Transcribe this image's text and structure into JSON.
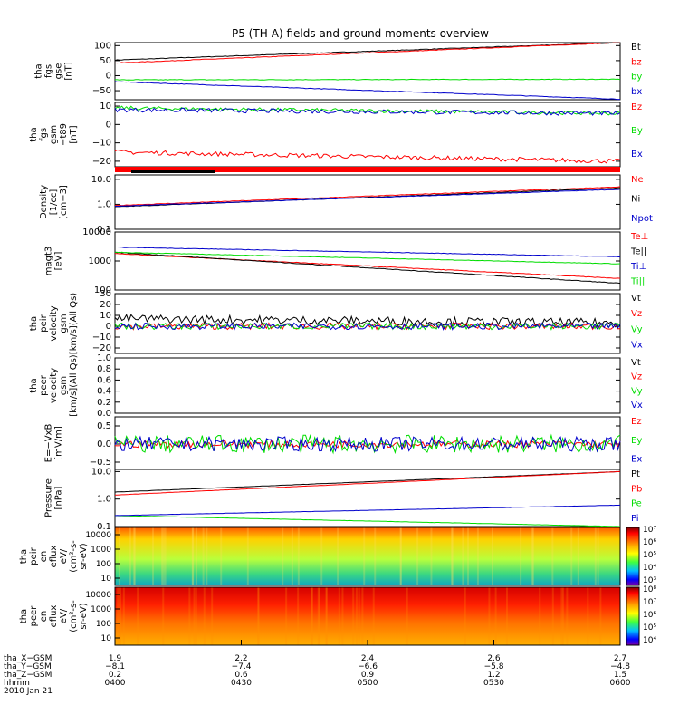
{
  "title": "P5 (TH-A) fields and ground moments overview",
  "colors": {
    "black": "#000000",
    "red": "#ff0000",
    "green": "#00dd00",
    "blue": "#0000cc"
  },
  "chart_data": [
    {
      "type": "line",
      "id": "fgs_gse",
      "ylabel": [
        "tha",
        "fgs",
        "gse",
        "[nT]"
      ],
      "ylim": [
        -80,
        110
      ],
      "yticks": [
        {
          "v": 100,
          "t": "100"
        },
        {
          "v": 50,
          "t": "50"
        },
        {
          "v": 0,
          "t": "0"
        },
        {
          "v": -50,
          "t": "−50"
        }
      ],
      "series": [
        {
          "name": "Bt",
          "color": "black",
          "start": 52,
          "end": 110,
          "noise": 1
        },
        {
          "name": "bz",
          "color": "red",
          "start": 42,
          "end": 110,
          "noise": 1
        },
        {
          "name": "by",
          "color": "green",
          "start": -14,
          "end": -12,
          "noise": 1
        },
        {
          "name": "bx",
          "color": "blue",
          "start": -20,
          "end": -78,
          "noise": 1
        }
      ]
    },
    {
      "type": "line",
      "id": "fgs_gsm",
      "ylabel": [
        "tha",
        "fgs",
        "gsm",
        "−t89",
        "[nT]"
      ],
      "ylim": [
        -23,
        12
      ],
      "yticks": [
        {
          "v": 10,
          "t": "10"
        },
        {
          "v": 0,
          "t": "0"
        },
        {
          "v": -10,
          "t": "−10"
        },
        {
          "v": -20,
          "t": "−20"
        }
      ],
      "series": [
        {
          "name": "Bz",
          "color": "red",
          "start": -15,
          "end": -20,
          "noise": 1.2
        },
        {
          "name": "By",
          "color": "green",
          "start": 9,
          "end": 6,
          "noise": 1
        },
        {
          "name": "Bx",
          "color": "blue",
          "start": 8,
          "end": 6,
          "noise": 1.2
        }
      ]
    },
    {
      "type": "line",
      "id": "density",
      "log": true,
      "ylabel": [
        "Density",
        "[1/cc]",
        "[cm−3]"
      ],
      "ylim": [
        0.1,
        15
      ],
      "yticks": [
        {
          "v": 10,
          "t": "10.0"
        },
        {
          "v": 1,
          "t": "1.0"
        },
        {
          "v": 0.1,
          "t": "0.1"
        }
      ],
      "series": [
        {
          "name": "Ne",
          "color": "red",
          "start": 0.9,
          "end": 5,
          "noise": 0.05
        },
        {
          "name": "Ni",
          "color": "black",
          "start": 0.8,
          "end": 4.5,
          "noise": 0.05
        },
        {
          "name": "Npot",
          "color": "blue",
          "start": 0.85,
          "end": 4,
          "noise": 0.05
        }
      ]
    },
    {
      "type": "line",
      "id": "temperature",
      "log": true,
      "ylabel": [
        "magt3",
        "[eV]"
      ],
      "ylim": [
        100,
        10000
      ],
      "yticks": [
        {
          "v": 10000,
          "t": "10000"
        },
        {
          "v": 1000,
          "t": "1000"
        },
        {
          "v": 100,
          "t": "100"
        }
      ],
      "series": [
        {
          "name": "Te⊥",
          "color": "red",
          "start": 1800,
          "end": 250,
          "noise": 0.05
        },
        {
          "name": "Te||",
          "color": "black",
          "start": 2000,
          "end": 170,
          "noise": 0.05
        },
        {
          "name": "Ti⊥",
          "color": "blue",
          "start": 3000,
          "end": 1400,
          "noise": 0.04
        },
        {
          "name": "Ti||",
          "color": "green",
          "start": 2000,
          "end": 800,
          "noise": 0.04
        }
      ]
    },
    {
      "type": "line",
      "id": "peir_velocity",
      "ylabel": [
        "tha",
        "peir",
        "velocity",
        "gsm",
        "[km/s](All Qs)"
      ],
      "ylim": [
        -25,
        30
      ],
      "yticks": [
        {
          "v": 30,
          "t": "30"
        },
        {
          "v": 20,
          "t": "20"
        },
        {
          "v": 10,
          "t": "10"
        },
        {
          "v": 0,
          "t": "0"
        },
        {
          "v": -10,
          "t": "−10"
        },
        {
          "v": -20,
          "t": "−20"
        }
      ],
      "series": [
        {
          "name": "Vt",
          "color": "black",
          "start": 7,
          "end": 3,
          "noise": 4
        },
        {
          "name": "Vz",
          "color": "red",
          "start": 0,
          "end": 0,
          "noise": 3
        },
        {
          "name": "Vy",
          "color": "green",
          "start": 0,
          "end": 0,
          "noise": 3
        },
        {
          "name": "Vx",
          "color": "blue",
          "start": 0,
          "end": 0,
          "noise": 3
        }
      ]
    },
    {
      "type": "line",
      "id": "peer_velocity",
      "ylabel": [
        "tha",
        "peer",
        "velocity",
        "gsm",
        "[km/s](All Qs)"
      ],
      "ylim": [
        0,
        1
      ],
      "yticks": [
        {
          "v": 1,
          "t": "1.0"
        },
        {
          "v": 0.8,
          "t": "0.8"
        },
        {
          "v": 0.6,
          "t": "0.6"
        },
        {
          "v": 0.4,
          "t": "0.4"
        },
        {
          "v": 0.2,
          "t": "0.2"
        },
        {
          "v": 0,
          "t": "0.0"
        }
      ],
      "series": [
        {
          "name": "Vt",
          "color": "black"
        },
        {
          "name": "Vz",
          "color": "red"
        },
        {
          "name": "Vy",
          "color": "green"
        },
        {
          "name": "Vx",
          "color": "blue"
        }
      ]
    },
    {
      "type": "line",
      "id": "efield",
      "ylabel": [
        "E=−VxB",
        "[mV/m]"
      ],
      "ylim": [
        -0.7,
        0.75
      ],
      "yticks": [
        {
          "v": 0.5,
          "t": "0.5"
        },
        {
          "v": 0,
          "t": "0.0"
        },
        {
          "v": -0.5,
          "t": "−0.5"
        }
      ],
      "series": [
        {
          "name": "Ez",
          "color": "red",
          "start": 0,
          "end": 0,
          "noise": 0.1
        },
        {
          "name": "Ey",
          "color": "green",
          "start": 0,
          "end": 0,
          "noise": 0.25
        },
        {
          "name": "Ex",
          "color": "blue",
          "start": 0,
          "end": 0,
          "noise": 0.2
        }
      ]
    },
    {
      "type": "line",
      "id": "pressure",
      "log": true,
      "ylabel": [
        "Pressure",
        "[nPa]"
      ],
      "ylim": [
        0.1,
        12
      ],
      "yticks": [
        {
          "v": 10,
          "t": "10.0"
        },
        {
          "v": 1,
          "t": "1.0"
        },
        {
          "v": 0.1,
          "t": "0.1"
        }
      ],
      "series": [
        {
          "name": "Pt",
          "color": "black",
          "start": 1.8,
          "end": 10,
          "noise": 0.02
        },
        {
          "name": "Pb",
          "color": "red",
          "start": 1.4,
          "end": 10,
          "noise": 0.02
        },
        {
          "name": "Pe",
          "color": "green",
          "start": 0.25,
          "end": 0.1,
          "noise": 0.02
        },
        {
          "name": "Pi",
          "color": "blue",
          "start": 0.25,
          "end": 0.6,
          "noise": 0.02
        }
      ]
    },
    {
      "type": "heatmap",
      "id": "peir_spectrogram",
      "ylabel": [
        "tha",
        "peir",
        "en",
        "eflux",
        "eV/",
        "(cm²-s-",
        "sr-eV)"
      ],
      "yticks": [
        "10000",
        "1000",
        "100",
        "10"
      ],
      "colorbar": [
        "10⁷",
        "10⁶",
        "10⁵",
        "10⁴",
        "10³"
      ]
    },
    {
      "type": "heatmap",
      "id": "peer_spectrogram",
      "ylabel": [
        "tha",
        "peer",
        "en",
        "eflux",
        "eV/",
        "(cm²-s-",
        "sr-eV)"
      ],
      "yticks": [
        "10000",
        "1000",
        "100",
        "10"
      ],
      "colorbar": [
        "10⁸",
        "10⁷",
        "10⁶",
        "10⁵",
        "10⁴"
      ]
    }
  ],
  "time_axis": {
    "row_labels": [
      "tha_X−GSM",
      "tha_Y−GSM",
      "tha_Z−GSM",
      "hhmm",
      "2010 Jan 21"
    ],
    "ticks": [
      {
        "x": "1.9",
        "y": "−8.1",
        "z": "0.2",
        "t": "0400"
      },
      {
        "x": "2.2",
        "y": "−7.4",
        "z": "0.6",
        "t": "0430"
      },
      {
        "x": "2.4",
        "y": "−6.6",
        "z": "0.9",
        "t": "0500"
      },
      {
        "x": "2.6",
        "y": "−5.8",
        "z": "1.2",
        "t": "0530"
      },
      {
        "x": "2.7",
        "y": "−4.8",
        "z": "1.5",
        "t": "0600"
      }
    ]
  }
}
